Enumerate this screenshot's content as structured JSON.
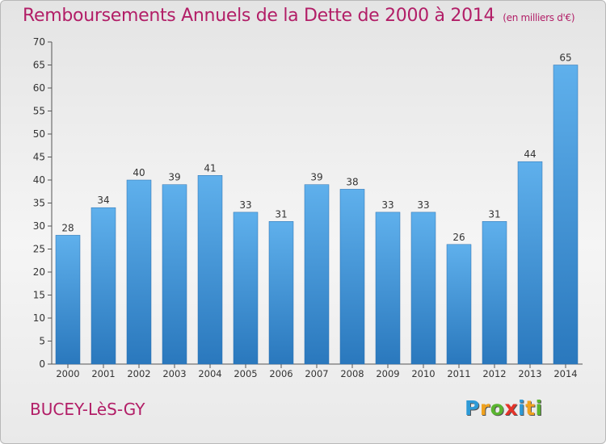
{
  "chart_data": {
    "type": "bar",
    "title": "Remboursements Annuels de la Dette de 2000 à 2014",
    "unit_note": "(en milliers d'€)",
    "categories": [
      "2000",
      "2001",
      "2002",
      "2003",
      "2004",
      "2005",
      "2006",
      "2007",
      "2008",
      "2009",
      "2010",
      "2011",
      "2012",
      "2013",
      "2014"
    ],
    "values": [
      28,
      34,
      40,
      39,
      41,
      33,
      31,
      39,
      38,
      33,
      33,
      26,
      31,
      44,
      65
    ],
    "y_ticks": [
      0,
      5,
      10,
      15,
      20,
      25,
      30,
      35,
      40,
      45,
      50,
      55,
      60,
      65,
      70
    ],
    "ylim": [
      0,
      70
    ],
    "grid": false,
    "legend": "none",
    "bar_color": "#3e8fd6"
  },
  "footer": {
    "town": "BUCEY-LèS-GY",
    "logo_letters": [
      {
        "ch": "P",
        "color": "#2e9ad6"
      },
      {
        "ch": "r",
        "color": "#f0a21f"
      },
      {
        "ch": "o",
        "color": "#5ab530"
      },
      {
        "ch": "x",
        "color": "#e5332a"
      },
      {
        "ch": "i",
        "color": "#2e9ad6"
      },
      {
        "ch": "t",
        "color": "#f0a21f"
      },
      {
        "ch": "i",
        "color": "#5ab530"
      }
    ]
  }
}
